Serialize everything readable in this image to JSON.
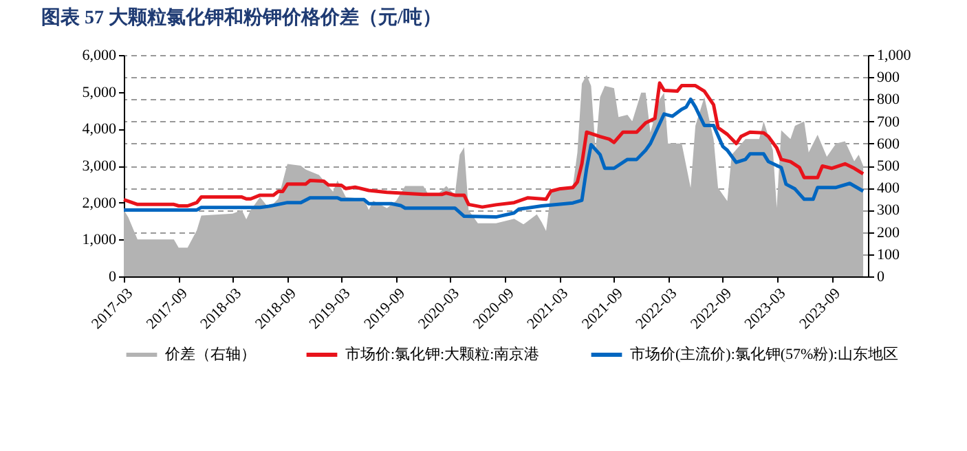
{
  "chart_data": {
    "type": "line",
    "title": "图表 57  大颗粒氯化钾和粉钾价格价差（元/吨）",
    "xlim": [
      "2017-03",
      "2024-01"
    ],
    "xticks": [
      "2017-03",
      "2017-09",
      "2018-03",
      "2018-09",
      "2019-03",
      "2019-09",
      "2020-03",
      "2020-09",
      "2021-03",
      "2021-09",
      "2022-03",
      "2022-09",
      "2023-03",
      "2023-09"
    ],
    "ylim": [
      0,
      6000
    ],
    "yticks": [
      0,
      {
        "value": 1000,
        "label": "1,000"
      },
      {
        "value": 2000,
        "label": "2,000"
      },
      {
        "value": 3000,
        "label": "3,000"
      },
      {
        "value": 4000,
        "label": "4,000"
      },
      {
        "value": 5000,
        "label": "5,000"
      },
      {
        "value": 6000,
        "label": "6,000"
      }
    ],
    "y2lim": [
      0,
      1000
    ],
    "y2ticks": [
      0,
      100,
      200,
      300,
      400,
      500,
      600,
      700,
      800,
      900,
      {
        "value": 1000,
        "label": "1,000"
      }
    ],
    "grid": "y",
    "legend": "bottom",
    "marker": "none",
    "line_style": "solid",
    "series": [
      {
        "name": "价差（右轴）",
        "type": "area",
        "axis": "y2",
        "color": "#b3b3b3",
        "x": [
          "2017-03-01",
          "2017-03-16",
          "2017-04-16",
          "2017-08-16",
          "2017-09-01",
          "2017-10-01",
          "2017-11-01",
          "2017-11-16",
          "2018-03-01",
          "2018-04-01",
          "2018-04-16",
          "2018-05-01",
          "2018-06-01",
          "2018-07-01",
          "2018-08-01",
          "2018-09-01",
          "2018-10-16",
          "2018-11-01",
          "2018-12-16",
          "2019-02-01",
          "2019-02-16",
          "2019-03-16",
          "2019-05-16",
          "2019-06-01",
          "2019-06-16",
          "2019-08-01",
          "2019-09-01",
          "2019-10-01",
          "2019-12-01",
          "2019-12-16",
          "2020-01-16",
          "2020-02-16",
          "2020-03-16",
          "2020-04-01",
          "2020-04-16",
          "2020-05-01",
          "2020-06-01",
          "2020-08-01",
          "2020-10-01",
          "2020-11-01",
          "2020-12-16",
          "2021-01-01",
          "2021-01-16",
          "2021-02-01",
          "2021-04-16",
          "2021-05-01",
          "2021-05-16",
          "2021-06-01",
          "2021-06-16",
          "2021-07-01",
          "2021-07-16",
          "2021-08-01",
          "2021-09-01",
          "2021-09-16",
          "2021-10-16",
          "2021-11-01",
          "2021-12-01",
          "2021-12-16",
          "2022-01-01",
          "2022-02-01",
          "2022-02-16",
          "2022-03-01",
          "2022-04-16",
          "2022-05-16",
          "2022-06-01",
          "2022-07-01",
          "2022-08-01",
          "2022-08-16",
          "2022-09-16",
          "2022-10-01",
          "2022-11-16",
          "2023-01-01",
          "2023-01-16",
          "2023-02-16",
          "2023-03-01",
          "2023-03-16",
          "2023-04-16",
          "2023-05-01",
          "2023-06-01",
          "2023-06-16",
          "2023-07-16",
          "2023-08-16",
          "2023-09-16",
          "2023-10-16",
          "2023-11-16",
          "2023-12-01",
          "2023-12-16"
        ],
        "values": [
          300,
          267,
          167,
          167,
          130,
          130,
          208,
          275,
          283,
          300,
          258,
          300,
          358,
          308,
          350,
          508,
          500,
          483,
          458,
          383,
          433,
          358,
          350,
          300,
          342,
          308,
          342,
          408,
          408,
          375,
          367,
          408,
          367,
          550,
          583,
          300,
          240,
          240,
          260,
          235,
          280,
          245,
          205,
          380,
          410,
          560,
          870,
          910,
          860,
          570,
          810,
          860,
          850,
          720,
          730,
          700,
          830,
          830,
          650,
          800,
          830,
          600,
          600,
          400,
          680,
          810,
          620,
          400,
          340,
          550,
          620,
          620,
          700,
          570,
          310,
          660,
          620,
          680,
          700,
          560,
          640,
          540,
          600,
          610,
          520,
          550,
          500
        ]
      },
      {
        "name": "市场价:氯化钾:大颗粒:南京港",
        "type": "line",
        "color": "#e8131b",
        "x": [
          "2017-03-01",
          "2017-04-16",
          "2017-08-16",
          "2017-09-01",
          "2017-10-01",
          "2017-11-01",
          "2017-11-16",
          "2018-04-01",
          "2018-04-16",
          "2018-05-01",
          "2018-06-01",
          "2018-07-16",
          "2018-08-01",
          "2018-08-16",
          "2018-09-01",
          "2018-11-01",
          "2018-11-16",
          "2019-01-01",
          "2019-01-16",
          "2019-03-01",
          "2019-03-16",
          "2019-04-16",
          "2019-06-01",
          "2019-08-01",
          "2019-10-01",
          "2019-12-01",
          "2020-02-01",
          "2020-02-16",
          "2020-03-16",
          "2020-04-16",
          "2020-05-01",
          "2020-06-16",
          "2020-08-01",
          "2020-10-01",
          "2020-11-16",
          "2021-01-16",
          "2021-02-01",
          "2021-03-01",
          "2021-04-16",
          "2021-05-01",
          "2021-05-16",
          "2021-06-01",
          "2021-07-16",
          "2021-08-16",
          "2021-09-01",
          "2021-10-01",
          "2021-11-16",
          "2021-12-16",
          "2022-01-16",
          "2022-02-01",
          "2022-02-16",
          "2022-04-01",
          "2022-04-16",
          "2022-06-01",
          "2022-07-01",
          "2022-08-01",
          "2022-08-16",
          "2022-09-16",
          "2022-10-16",
          "2022-11-01",
          "2022-12-01",
          "2023-01-16",
          "2023-02-01",
          "2023-03-01",
          "2023-03-16",
          "2023-04-16",
          "2023-05-16",
          "2023-06-01",
          "2023-07-16",
          "2023-08-01",
          "2023-09-01",
          "2023-10-16",
          "2023-11-16",
          "2023-12-16"
        ],
        "values": [
          2080,
          1950,
          1950,
          1910,
          1910,
          2000,
          2150,
          2150,
          2100,
          2100,
          2200,
          2200,
          2300,
          2300,
          2500,
          2500,
          2600,
          2580,
          2480,
          2470,
          2380,
          2420,
          2330,
          2280,
          2250,
          2220,
          2220,
          2260,
          2200,
          2200,
          1950,
          1880,
          1940,
          2000,
          2130,
          2090,
          2310,
          2370,
          2410,
          2560,
          3050,
          3910,
          3790,
          3720,
          3630,
          3910,
          3910,
          4160,
          4280,
          5240,
          5040,
          5020,
          5170,
          5170,
          5020,
          4650,
          4030,
          3850,
          3600,
          3790,
          3910,
          3890,
          3790,
          3480,
          3170,
          3110,
          2950,
          2680,
          2680,
          2990,
          2930,
          3050,
          2930,
          2780
        ]
      },
      {
        "name": "市场价(主流价):氯化钾(57%粉):山东地区",
        "type": "line",
        "color": "#0066c0",
        "x": [
          "2017-03-01",
          "2017-11-01",
          "2017-11-16",
          "2018-06-01",
          "2018-07-01",
          "2018-08-01",
          "2018-09-01",
          "2018-10-16",
          "2018-11-16",
          "2019-02-16",
          "2019-03-01",
          "2019-05-16",
          "2019-06-01",
          "2019-08-16",
          "2019-09-16",
          "2019-10-01",
          "2020-03-16",
          "2020-04-16",
          "2020-08-01",
          "2020-10-01",
          "2020-10-16",
          "2021-01-01",
          "2021-04-16",
          "2021-05-16",
          "2021-06-01",
          "2021-06-16",
          "2021-07-16",
          "2021-08-01",
          "2021-09-01",
          "2021-10-16",
          "2021-11-16",
          "2021-12-16",
          "2022-01-01",
          "2022-02-16",
          "2022-03-16",
          "2022-04-16",
          "2022-05-01",
          "2022-05-16",
          "2022-06-01",
          "2022-07-01",
          "2022-08-01",
          "2022-09-01",
          "2022-09-16",
          "2022-10-16",
          "2022-11-16",
          "2022-12-01",
          "2023-01-16",
          "2023-02-01",
          "2023-03-16",
          "2023-04-01",
          "2023-05-01",
          "2023-06-01",
          "2023-07-01",
          "2023-07-16",
          "2023-09-16",
          "2023-11-01",
          "2023-12-16"
        ],
        "values": [
          1800,
          1800,
          1870,
          1870,
          1900,
          1950,
          2000,
          2000,
          2130,
          2130,
          2080,
          2080,
          1970,
          1970,
          1920,
          1850,
          1850,
          1630,
          1610,
          1720,
          1820,
          1910,
          1990,
          2060,
          2930,
          3570,
          3300,
          2930,
          2930,
          3170,
          3170,
          3420,
          3600,
          4400,
          4340,
          4530,
          4590,
          4800,
          4590,
          4090,
          4090,
          3520,
          3420,
          3090,
          3170,
          3320,
          3320,
          3110,
          2950,
          2500,
          2370,
          2090,
          2090,
          2410,
          2410,
          2520,
          2310
        ]
      }
    ]
  }
}
